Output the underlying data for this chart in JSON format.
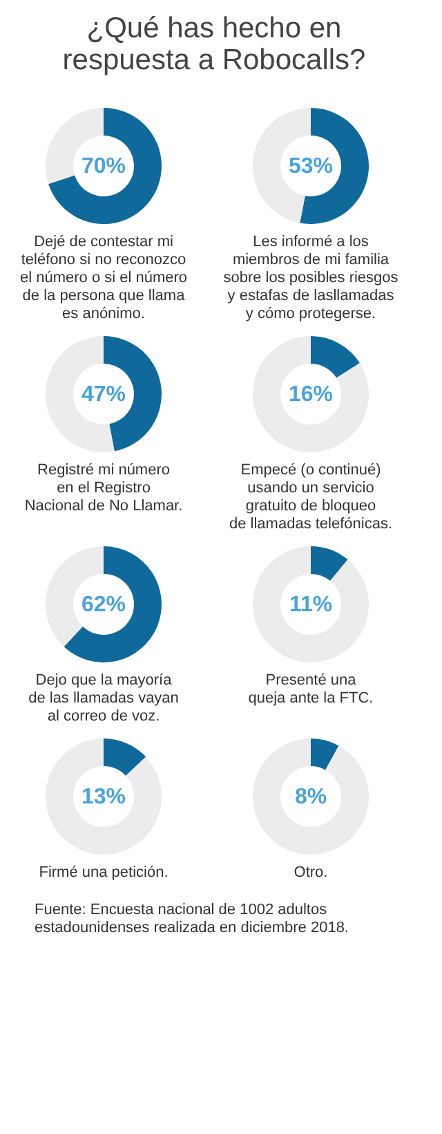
{
  "chart_data": [
    {
      "type": "other",
      "title": "¿Qué has hecho en\nrespuesta a Robocalls?"
    },
    {
      "type": "donut",
      "title": "Dejé de contestar mi\nteléfono si no reconozco\nel número o si el número\nde la persona que llama\nes anónimo.",
      "categories": [
        null,
        null
      ],
      "values": [
        70,
        30
      ],
      "colors": [
        "#10699b",
        "#ececec"
      ],
      "annotations": [
        "70%"
      ]
    },
    {
      "type": "donut",
      "title": "Les informé a los\nmiembros de mi familia\nsobre los posibles riesgos\ny estafas de lasllamadas\ny cómo protegerse.",
      "categories": [
        null,
        null
      ],
      "values": [
        53,
        47
      ],
      "colors": [
        "#10699b",
        "#ececec"
      ],
      "annotations": [
        "53%"
      ]
    },
    {
      "type": "donut",
      "title": "Registré mi número\nen el Registro\nNacional de No Llamar.",
      "categories": [
        null,
        null
      ],
      "values": [
        47,
        53
      ],
      "colors": [
        "#10699b",
        "#ececec"
      ],
      "annotations": [
        "47%"
      ]
    },
    {
      "type": "donut",
      "title": "Empecé (o continué)\nusando un servicio\ngratuito de bloqueo\nde llamadas telefónicas.",
      "categories": [
        null,
        null
      ],
      "values": [
        16,
        84
      ],
      "colors": [
        "#10699b",
        "#ececec"
      ],
      "annotations": [
        "16%"
      ]
    },
    {
      "type": "donut",
      "title": "Dejo que la mayoría\nde las llamadas vayan\nal correo de voz.",
      "categories": [
        null,
        null
      ],
      "values": [
        62,
        38
      ],
      "colors": [
        "#10699b",
        "#ececec"
      ],
      "annotations": [
        "62%"
      ]
    },
    {
      "type": "donut",
      "title": "Presenté una\nqueja ante la FTC.",
      "categories": [
        null,
        null
      ],
      "values": [
        11,
        89
      ],
      "colors": [
        "#10699b",
        "#ececec"
      ],
      "annotations": [
        "11%"
      ]
    },
    {
      "type": "donut",
      "title": "Firmé una petición.",
      "categories": [
        null,
        null
      ],
      "values": [
        13,
        87
      ],
      "colors": [
        "#10699b",
        "#ececec"
      ],
      "annotations": [
        "13%"
      ]
    },
    {
      "type": "donut",
      "title": "Otro.",
      "categories": [
        null,
        null
      ],
      "values": [
        8,
        92
      ],
      "colors": [
        "#10699b",
        "#ececec"
      ],
      "annotations": [
        "8%"
      ]
    },
    {
      "type": "other",
      "annotations": [
        "Fuente: Encuesta nacional de 1002 adultos\nestadounidenses realizada en diciembre 2018."
      ]
    }
  ]
}
